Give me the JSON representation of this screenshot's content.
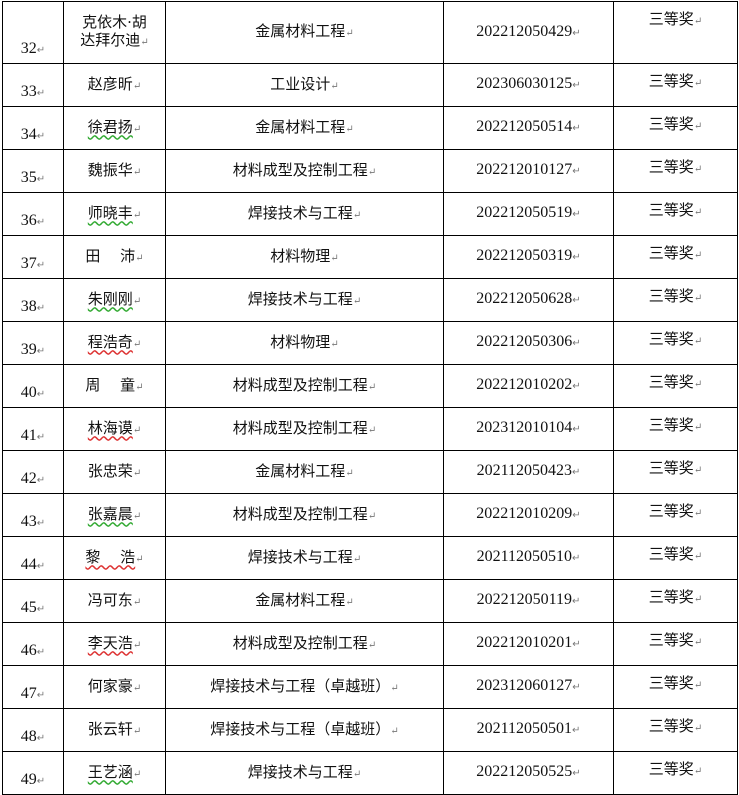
{
  "paragraph_mark": "↵",
  "rows": [
    {
      "no": "32",
      "name": "克依木·胡\n达拜尔迪",
      "major": "金属材料工程",
      "id": "202212050429",
      "award": "三等奖"
    },
    {
      "no": "33",
      "name": "赵彦昕",
      "major": "工业设计",
      "id": "202306030125",
      "award": "三等奖"
    },
    {
      "no": "34",
      "name": "徐君扬",
      "major": "金属材料工程",
      "id": "202212050514",
      "award": "三等奖"
    },
    {
      "no": "35",
      "name": "魏振华",
      "major": "材料成型及控制工程",
      "id": "202212010127",
      "award": "三等奖"
    },
    {
      "no": "36",
      "name": "师晓丰",
      "major": "焊接技术与工程",
      "id": "202212050519",
      "award": "三等奖"
    },
    {
      "no": "37",
      "name": "田　 沛",
      "major": "材料物理",
      "id": "202212050319",
      "award": "三等奖"
    },
    {
      "no": "38",
      "name": "朱刚刚",
      "major": "焊接技术与工程",
      "id": "202212050628",
      "award": "三等奖"
    },
    {
      "no": "39",
      "name": "程浩奇",
      "major": "材料物理",
      "id": "202212050306",
      "award": "三等奖"
    },
    {
      "no": "40",
      "name": "周　 童",
      "major": "材料成型及控制工程",
      "id": "202212010202",
      "award": "三等奖"
    },
    {
      "no": "41",
      "name": "林海谟",
      "major": "材料成型及控制工程",
      "id": "202312010104",
      "award": "三等奖"
    },
    {
      "no": "42",
      "name": "张忠荣",
      "major": "金属材料工程",
      "id": "202112050423",
      "award": "三等奖"
    },
    {
      "no": "43",
      "name": "张嘉晨",
      "major": "材料成型及控制工程",
      "id": "202212010209",
      "award": "三等奖"
    },
    {
      "no": "44",
      "name": "黎　 浩",
      "major": "焊接技术与工程",
      "id": "202112050510",
      "award": "三等奖"
    },
    {
      "no": "45",
      "name": "冯可东",
      "major": "金属材料工程",
      "id": "202212050119",
      "award": "三等奖"
    },
    {
      "no": "46",
      "name": "李天浩",
      "major": "材料成型及控制工程",
      "id": "202212010201",
      "award": "三等奖"
    },
    {
      "no": "47",
      "name": "何家豪",
      "major": "焊接技术与工程（卓越班）",
      "id": "202312060127",
      "award": "三等奖"
    },
    {
      "no": "48",
      "name": "张云轩",
      "major": "焊接技术与工程（卓越班）",
      "id": "202112050501",
      "award": "三等奖"
    },
    {
      "no": "49",
      "name": "王艺涵",
      "major": "焊接技术与工程",
      "id": "202212050525",
      "award": "三等奖"
    }
  ]
}
